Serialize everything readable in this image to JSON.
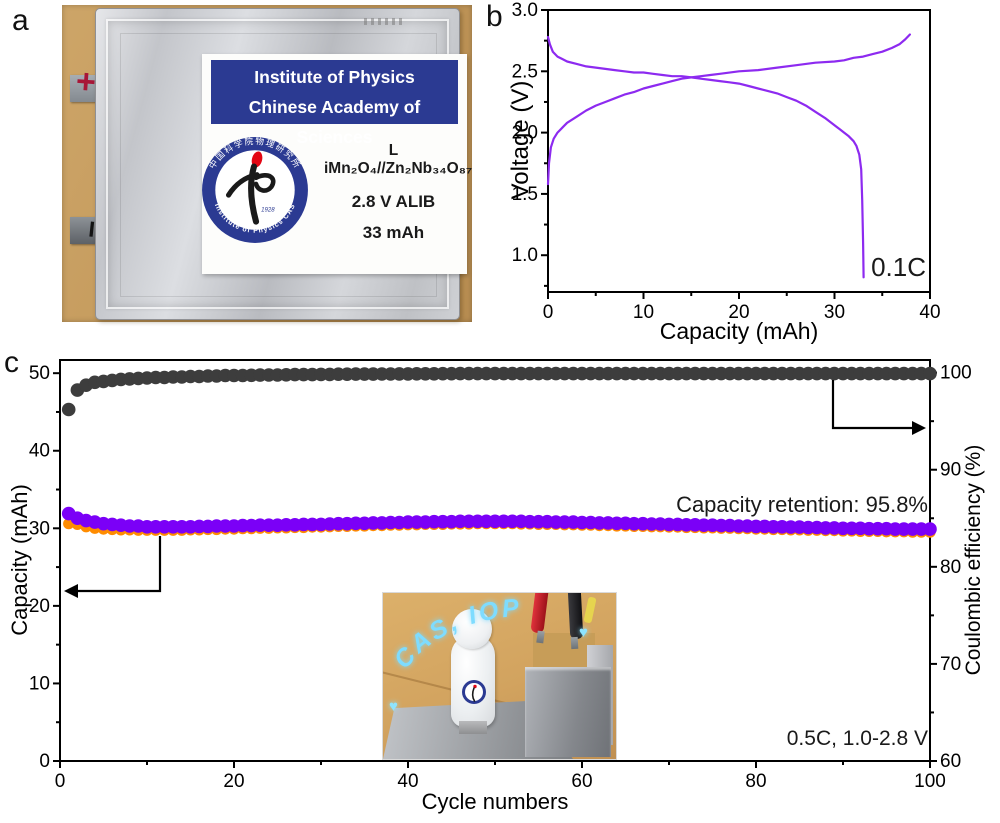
{
  "figure": {
    "panel_labels": {
      "a": "a",
      "b": "b",
      "c": "c"
    }
  },
  "colors": {
    "line_purple": "#8d2af0",
    "dot_purple": "#7b00f7",
    "dot_orange": "#ff8c00",
    "dot_black": "#3d3d3d",
    "label_blue": "#2b3a92",
    "led_blue": "#7edcff",
    "marker_red": "#a81637"
  },
  "panel_a": {
    "label_card": {
      "line1": "Institute of Physics",
      "line2": "Chinese Academy of Sciences",
      "chemistry": "L iMn₂O₄//Zn₂Nb₃₄O₈₇",
      "spec1": "2.8 V ALIB",
      "spec2": "33 mAh"
    },
    "logo": {
      "ring_top": "中国科学院物理研究所",
      "ring_bottom": "Institute of Physics CAS",
      "year": "1928"
    },
    "terminals": {
      "positive": "+",
      "negative": "−"
    }
  },
  "panel_c": {
    "inset": {
      "led_text": "CAS, IOP",
      "heart": "♥"
    }
  },
  "chart_data": [
    {
      "id": "voltage_capacity",
      "type": "line",
      "xlabel": "Capacity (mAh)",
      "ylabel": "Voltage (V)",
      "xlim": [
        0,
        40
      ],
      "ylim": [
        0.7,
        3.0
      ],
      "x_ticks": [
        "0",
        "10",
        "20",
        "30",
        "40"
      ],
      "y_ticks": [
        "1.0",
        "1.5",
        "2.0",
        "2.5",
        "3.0"
      ],
      "annotation": "0.1C",
      "grid": false,
      "legend": "none",
      "series": [
        {
          "name": "charge",
          "points": [
            [
              0,
              1.58
            ],
            [
              0.1,
              1.75
            ],
            [
              0.3,
              1.88
            ],
            [
              0.6,
              1.95
            ],
            [
              1,
              2.0
            ],
            [
              1.5,
              2.04
            ],
            [
              2,
              2.08
            ],
            [
              3,
              2.13
            ],
            [
              4,
              2.18
            ],
            [
              5,
              2.22
            ],
            [
              6,
              2.25
            ],
            [
              7,
              2.28
            ],
            [
              8,
              2.31
            ],
            [
              9,
              2.33
            ],
            [
              10,
              2.36
            ],
            [
              11,
              2.38
            ],
            [
              12,
              2.4
            ],
            [
              13,
              2.42
            ],
            [
              14,
              2.44
            ],
            [
              15,
              2.45
            ],
            [
              16,
              2.46
            ],
            [
              17,
              2.47
            ],
            [
              18,
              2.48
            ],
            [
              20,
              2.5
            ],
            [
              22,
              2.51
            ],
            [
              24,
              2.53
            ],
            [
              26,
              2.55
            ],
            [
              28,
              2.57
            ],
            [
              30,
              2.58
            ],
            [
              31,
              2.59
            ],
            [
              32,
              2.61
            ],
            [
              33,
              2.62
            ],
            [
              34,
              2.64
            ],
            [
              35,
              2.66
            ],
            [
              36,
              2.69
            ],
            [
              36.8,
              2.72
            ],
            [
              37.4,
              2.76
            ],
            [
              37.9,
              2.8
            ]
          ]
        },
        {
          "name": "discharge",
          "points": [
            [
              0,
              2.78
            ],
            [
              0.2,
              2.72
            ],
            [
              0.5,
              2.66
            ],
            [
              1,
              2.62
            ],
            [
              1.5,
              2.6
            ],
            [
              2,
              2.58
            ],
            [
              3,
              2.56
            ],
            [
              4,
              2.54
            ],
            [
              5,
              2.53
            ],
            [
              6,
              2.52
            ],
            [
              7,
              2.51
            ],
            [
              8,
              2.5
            ],
            [
              9,
              2.49
            ],
            [
              10,
              2.49
            ],
            [
              11,
              2.48
            ],
            [
              12,
              2.47
            ],
            [
              13,
              2.46
            ],
            [
              14,
              2.46
            ],
            [
              15,
              2.45
            ],
            [
              16,
              2.44
            ],
            [
              17,
              2.43
            ],
            [
              18,
              2.42
            ],
            [
              19,
              2.41
            ],
            [
              20,
              2.4
            ],
            [
              21,
              2.38
            ],
            [
              22,
              2.36
            ],
            [
              23,
              2.34
            ],
            [
              24,
              2.32
            ],
            [
              25,
              2.29
            ],
            [
              26,
              2.26
            ],
            [
              27,
              2.22
            ],
            [
              28,
              2.17
            ],
            [
              29,
              2.12
            ],
            [
              30,
              2.06
            ],
            [
              30.5,
              2.03
            ],
            [
              31,
              2.0
            ],
            [
              31.5,
              1.97
            ],
            [
              32,
              1.93
            ],
            [
              32.3,
              1.89
            ],
            [
              32.6,
              1.82
            ],
            [
              32.8,
              1.7
            ],
            [
              32.9,
              1.45
            ],
            [
              33,
              1.1
            ],
            [
              33.05,
              0.82
            ]
          ]
        }
      ]
    },
    {
      "id": "cycling_stability",
      "type": "scatter",
      "xlabel": "Cycle numbers",
      "ylabel_left": "Capacity (mAh)",
      "ylabel_right": "Coulombic efficiency (%)",
      "xlim": [
        0,
        100
      ],
      "ylim_left": [
        0,
        51.7
      ],
      "ylim_right": [
        60,
        101.3
      ],
      "x_ticks": [
        "0",
        "20",
        "40",
        "60",
        "80",
        "100"
      ],
      "y_ticks_left": [
        "0",
        "10",
        "20",
        "30",
        "40",
        "50"
      ],
      "y_ticks_right": [
        "60",
        "70",
        "80",
        "90",
        "100"
      ],
      "annotations": [
        "Capacity retention: 95.8%",
        "0.5C, 1.0-2.8 V"
      ],
      "grid": false,
      "legend": "none",
      "series": [
        {
          "name": "discharge_capacity",
          "axis": "left",
          "color": "#ff8c00",
          "values": [
            30.6,
            30.5,
            30.2,
            30.0,
            29.9,
            29.85,
            29.8,
            29.8,
            29.75,
            29.75,
            29.75,
            29.75,
            29.75,
            29.75,
            29.8,
            29.8,
            29.85,
            29.85,
            29.9,
            29.9,
            29.95,
            29.95,
            30.0,
            30.0,
            30.05,
            30.05,
            30.1,
            30.1,
            30.15,
            30.15,
            30.2,
            30.25,
            30.25,
            30.3,
            30.3,
            30.35,
            30.35,
            30.4,
            30.4,
            30.45,
            30.45,
            30.5,
            30.5,
            30.5,
            30.55,
            30.55,
            30.55,
            30.6,
            30.6,
            30.6,
            30.6,
            30.6,
            30.55,
            30.55,
            30.5,
            30.5,
            30.5,
            30.45,
            30.45,
            30.4,
            30.4,
            30.35,
            30.35,
            30.3,
            30.3,
            30.25,
            30.25,
            30.2,
            30.2,
            30.15,
            30.15,
            30.1,
            30.1,
            30.05,
            30.05,
            30.0,
            30.0,
            29.95,
            29.95,
            29.9,
            29.9,
            29.85,
            29.85,
            29.8,
            29.8,
            29.75,
            29.75,
            29.7,
            29.7,
            29.65,
            29.65,
            29.6,
            29.6,
            29.6,
            29.55,
            29.55,
            29.55,
            29.5,
            29.5,
            29.5
          ]
        },
        {
          "name": "charge_capacity",
          "axis": "left",
          "color": "#7b00f7",
          "values": [
            31.9,
            31.3,
            31.0,
            30.8,
            30.6,
            30.5,
            30.4,
            30.3,
            30.3,
            30.2,
            30.2,
            30.2,
            30.2,
            30.2,
            30.2,
            30.25,
            30.25,
            30.3,
            30.3,
            30.3,
            30.35,
            30.35,
            30.4,
            30.4,
            30.4,
            30.45,
            30.45,
            30.5,
            30.5,
            30.5,
            30.55,
            30.6,
            30.6,
            30.65,
            30.65,
            30.7,
            30.7,
            30.75,
            30.75,
            30.8,
            30.8,
            30.8,
            30.85,
            30.85,
            30.85,
            30.9,
            30.9,
            30.9,
            30.9,
            30.9,
            30.9,
            30.9,
            30.9,
            30.85,
            30.85,
            30.85,
            30.8,
            30.8,
            30.8,
            30.75,
            30.75,
            30.7,
            30.7,
            30.65,
            30.65,
            30.6,
            30.6,
            30.55,
            30.55,
            30.5,
            30.5,
            30.45,
            30.45,
            30.4,
            30.4,
            30.35,
            30.35,
            30.3,
            30.3,
            30.25,
            30.25,
            30.2,
            30.2,
            30.15,
            30.15,
            30.1,
            30.1,
            30.05,
            30.05,
            30.0,
            30.0,
            30.0,
            29.95,
            29.95,
            29.95,
            29.9,
            29.9,
            29.9,
            29.9,
            29.9
          ]
        },
        {
          "name": "coulombic_efficiency",
          "axis": "right",
          "color": "#3d3d3d",
          "values": [
            96.2,
            98.2,
            98.7,
            99.0,
            99.1,
            99.2,
            99.3,
            99.35,
            99.4,
            99.45,
            99.5,
            99.5,
            99.55,
            99.55,
            99.6,
            99.6,
            99.65,
            99.65,
            99.7,
            99.7,
            99.7,
            99.72,
            99.74,
            99.75,
            99.76,
            99.78,
            99.8,
            99.8,
            99.8,
            99.82,
            99.82,
            99.84,
            99.84,
            99.85,
            99.85,
            99.85,
            99.86,
            99.86,
            99.87,
            99.87,
            99.88,
            99.88,
            99.88,
            99.89,
            99.89,
            99.9,
            99.9,
            99.9,
            99.9,
            99.9,
            99.9,
            99.9,
            99.9,
            99.9,
            99.9,
            99.9,
            99.9,
            99.9,
            99.9,
            99.9,
            99.9,
            99.9,
            99.9,
            99.9,
            99.9,
            99.9,
            99.9,
            99.9,
            99.9,
            99.9,
            99.9,
            99.9,
            99.9,
            99.9,
            99.9,
            99.9,
            99.9,
            99.9,
            99.9,
            99.9,
            99.9,
            99.9,
            99.9,
            99.9,
            99.9,
            99.9,
            99.9,
            99.9,
            99.9,
            99.9,
            99.9,
            99.9,
            99.9,
            99.9,
            99.9,
            99.9,
            99.9,
            99.9,
            99.9,
            99.9
          ]
        }
      ]
    }
  ]
}
